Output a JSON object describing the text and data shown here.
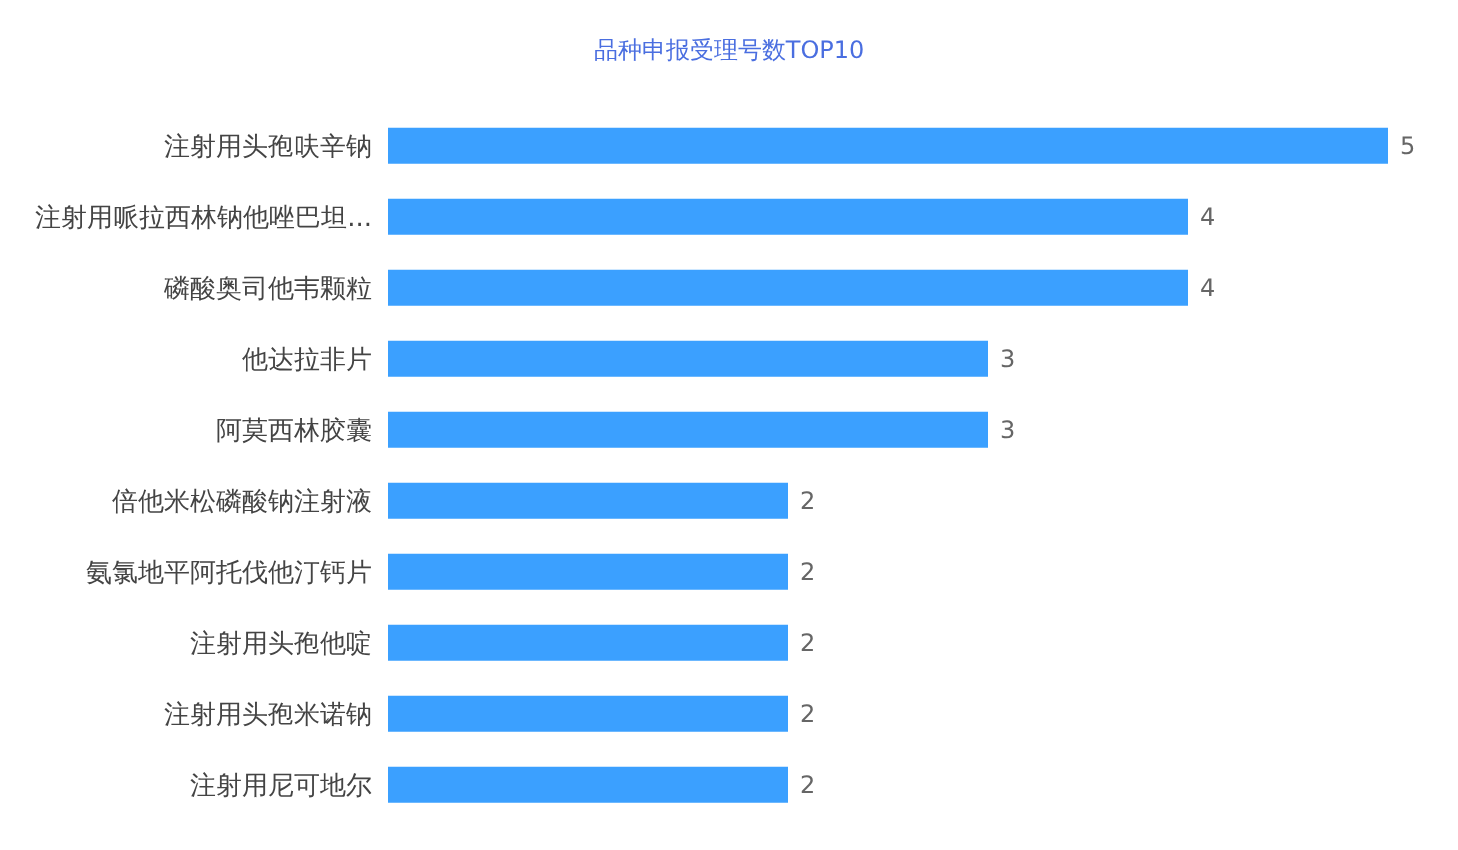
{
  "chart_data": {
    "type": "bar",
    "orientation": "horizontal",
    "title": "品种申报受理号数TOP10",
    "categories": [
      "注射用头孢呋辛钠",
      "注射用哌拉西林钠他唑巴坦...",
      "磷酸奥司他韦颗粒",
      "他达拉非片",
      "阿莫西林胶囊",
      "倍他米松磷酸钠注射液",
      "氨氯地平阿托伐他汀钙片",
      "注射用头孢他啶",
      "注射用头孢米诺钠",
      "注射用尼可地尔"
    ],
    "values": [
      5,
      4,
      4,
      3,
      3,
      2,
      2,
      2,
      2,
      2
    ],
    "color": "#3ba0ff",
    "xlim": [
      0,
      5
    ],
    "data_labels": true,
    "tick_labels": "y"
  }
}
